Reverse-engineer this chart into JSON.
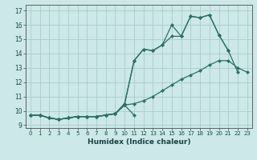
{
  "xlabel": "Humidex (Indice chaleur)",
  "background_color": "#cce8e8",
  "grid_color": "#aacccc",
  "line_color": "#2a7068",
  "xlim": [
    -0.5,
    23.5
  ],
  "ylim": [
    8.8,
    17.4
  ],
  "xticks": [
    0,
    1,
    2,
    3,
    4,
    5,
    6,
    7,
    8,
    9,
    10,
    11,
    12,
    13,
    14,
    15,
    16,
    17,
    18,
    19,
    20,
    21,
    22,
    23
  ],
  "yticks": [
    9,
    10,
    11,
    12,
    13,
    14,
    15,
    16,
    17
  ],
  "line1_x": [
    0,
    1,
    2,
    3,
    4,
    5,
    6,
    7,
    8,
    9,
    10,
    11
  ],
  "line1_y": [
    9.7,
    9.7,
    9.5,
    9.4,
    9.5,
    9.6,
    9.6,
    9.6,
    9.7,
    9.8,
    10.4,
    9.7
  ],
  "line2_x": [
    0,
    1,
    2,
    3,
    4,
    5,
    6,
    7,
    8,
    9,
    10,
    11,
    12,
    13,
    14,
    15,
    16,
    17,
    18,
    19,
    20,
    21
  ],
  "line2_y": [
    9.7,
    9.7,
    9.5,
    9.4,
    9.5,
    9.6,
    9.6,
    9.6,
    9.7,
    9.8,
    10.5,
    13.5,
    14.3,
    14.2,
    14.6,
    16.0,
    15.2,
    16.6,
    16.5,
    16.7,
    15.3,
    14.2
  ],
  "line3_x": [
    0,
    1,
    2,
    3,
    4,
    5,
    6,
    7,
    8,
    9,
    10,
    11,
    12,
    13,
    14,
    15,
    16,
    17,
    18,
    19,
    20,
    21,
    22
  ],
  "line3_y": [
    9.7,
    9.7,
    9.5,
    9.4,
    9.5,
    9.6,
    9.6,
    9.6,
    9.7,
    9.8,
    10.5,
    13.5,
    14.3,
    14.2,
    14.6,
    15.2,
    15.2,
    16.6,
    16.5,
    16.7,
    15.3,
    14.2,
    12.7
  ],
  "line4_x": [
    0,
    1,
    2,
    3,
    4,
    5,
    6,
    7,
    8,
    9,
    10,
    11,
    12,
    13,
    14,
    15,
    16,
    17,
    18,
    19,
    20,
    21,
    22,
    23
  ],
  "line4_y": [
    9.7,
    9.7,
    9.5,
    9.4,
    9.5,
    9.6,
    9.6,
    9.6,
    9.7,
    9.8,
    10.4,
    10.5,
    10.7,
    11.0,
    11.4,
    11.8,
    12.2,
    12.5,
    12.8,
    13.2,
    13.5,
    13.5,
    13.0,
    12.7
  ]
}
